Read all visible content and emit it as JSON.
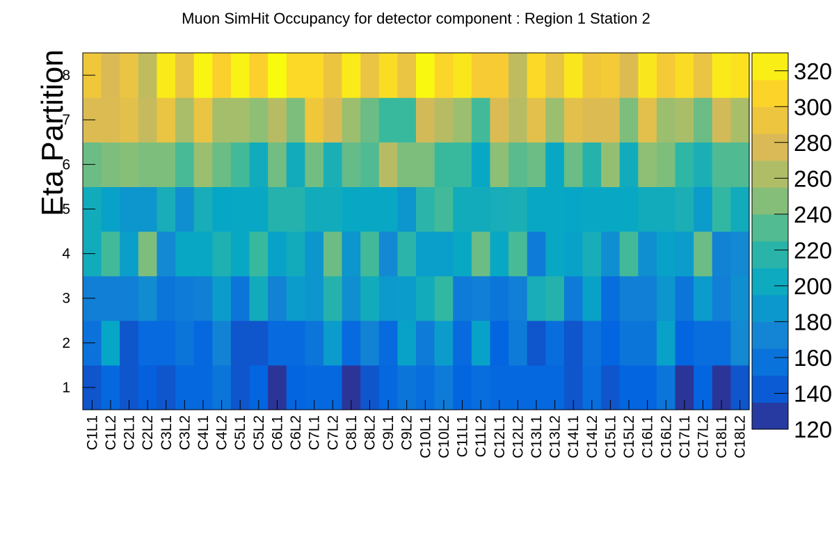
{
  "chart_data": {
    "type": "heatmap",
    "title": "Muon SimHit Occupancy for detector component : Region 1 Station 2",
    "xlabel": "",
    "ylabel": "Eta Partition",
    "x_categories": [
      "C1L1",
      "C1L2",
      "C2L1",
      "C2L2",
      "C3L1",
      "C3L2",
      "C4L1",
      "C4L2",
      "C5L1",
      "C5L2",
      "C6L1",
      "C6L2",
      "C7L1",
      "C7L2",
      "C8L1",
      "C8L2",
      "C9L1",
      "C9L2",
      "C10L1",
      "C10L2",
      "C11L1",
      "C11L2",
      "C12L1",
      "C12L2",
      "C13L1",
      "C13L2",
      "C14L1",
      "C14L2",
      "C15L1",
      "C15L2",
      "C16L1",
      "C16L2",
      "C17L1",
      "C17L2",
      "C18L1",
      "C18L2"
    ],
    "y_categories": [
      "1",
      "2",
      "3",
      "4",
      "5",
      "6",
      "7",
      "8"
    ],
    "z_range": [
      120,
      330
    ],
    "z_ticks": [
      "120",
      "140",
      "160",
      "180",
      "200",
      "220",
      "240",
      "260",
      "280",
      "300",
      "320"
    ],
    "colormap": [
      "#352a87",
      "#0363e1",
      "#1485d4",
      "#06a7c6",
      "#38b99e",
      "#92bf73",
      "#d9ba56",
      "#fcce2e",
      "#f9fb0e"
    ],
    "values": [
      [
        140,
        150,
        140,
        145,
        140,
        150,
        150,
        160,
        140,
        148,
        125,
        148,
        150,
        150,
        125,
        140,
        150,
        160,
        155,
        165,
        148,
        155,
        150,
        150,
        150,
        150,
        140,
        155,
        140,
        148,
        148,
        160,
        125,
        148,
        125,
        140
      ],
      [
        158,
        198,
        140,
        152,
        152,
        160,
        150,
        170,
        140,
        140,
        152,
        152,
        160,
        190,
        152,
        170,
        152,
        195,
        165,
        190,
        152,
        195,
        148,
        165,
        140,
        155,
        140,
        158,
        148,
        160,
        160,
        195,
        148,
        155,
        155,
        175
      ],
      [
        168,
        168,
        168,
        178,
        160,
        165,
        168,
        190,
        160,
        205,
        170,
        190,
        185,
        215,
        180,
        205,
        188,
        190,
        205,
        222,
        165,
        168,
        160,
        168,
        208,
        215,
        165,
        195,
        155,
        168,
        168,
        185,
        160,
        190,
        168,
        180
      ],
      [
        205,
        228,
        192,
        245,
        175,
        200,
        200,
        212,
        200,
        225,
        195,
        205,
        185,
        240,
        185,
        228,
        175,
        218,
        192,
        192,
        200,
        240,
        200,
        230,
        165,
        200,
        195,
        208,
        180,
        228,
        180,
        195,
        190,
        240,
        170,
        175
      ],
      [
        205,
        195,
        185,
        185,
        208,
        180,
        208,
        198,
        200,
        200,
        215,
        215,
        205,
        205,
        200,
        200,
        200,
        185,
        218,
        228,
        205,
        205,
        208,
        210,
        200,
        200,
        198,
        200,
        200,
        200,
        205,
        205,
        210,
        190,
        222,
        205
      ],
      [
        240,
        245,
        248,
        245,
        245,
        230,
        255,
        240,
        228,
        205,
        242,
        205,
        242,
        210,
        238,
        232,
        265,
        245,
        245,
        225,
        225,
        200,
        250,
        235,
        240,
        200,
        240,
        215,
        252,
        205,
        250,
        245,
        220,
        210,
        232,
        232
      ],
      [
        280,
        280,
        285,
        270,
        290,
        260,
        290,
        258,
        258,
        250,
        265,
        245,
        295,
        280,
        255,
        240,
        225,
        225,
        275,
        265,
        255,
        228,
        280,
        265,
        285,
        255,
        285,
        280,
        280,
        245,
        285,
        255,
        260,
        240,
        275,
        260
      ],
      [
        295,
        278,
        290,
        268,
        320,
        290,
        326,
        305,
        325,
        305,
        330,
        310,
        310,
        292,
        320,
        290,
        312,
        290,
        328,
        308,
        318,
        300,
        300,
        268,
        310,
        290,
        318,
        295,
        298,
        280,
        318,
        298,
        312,
        290,
        320,
        315
      ]
    ]
  }
}
